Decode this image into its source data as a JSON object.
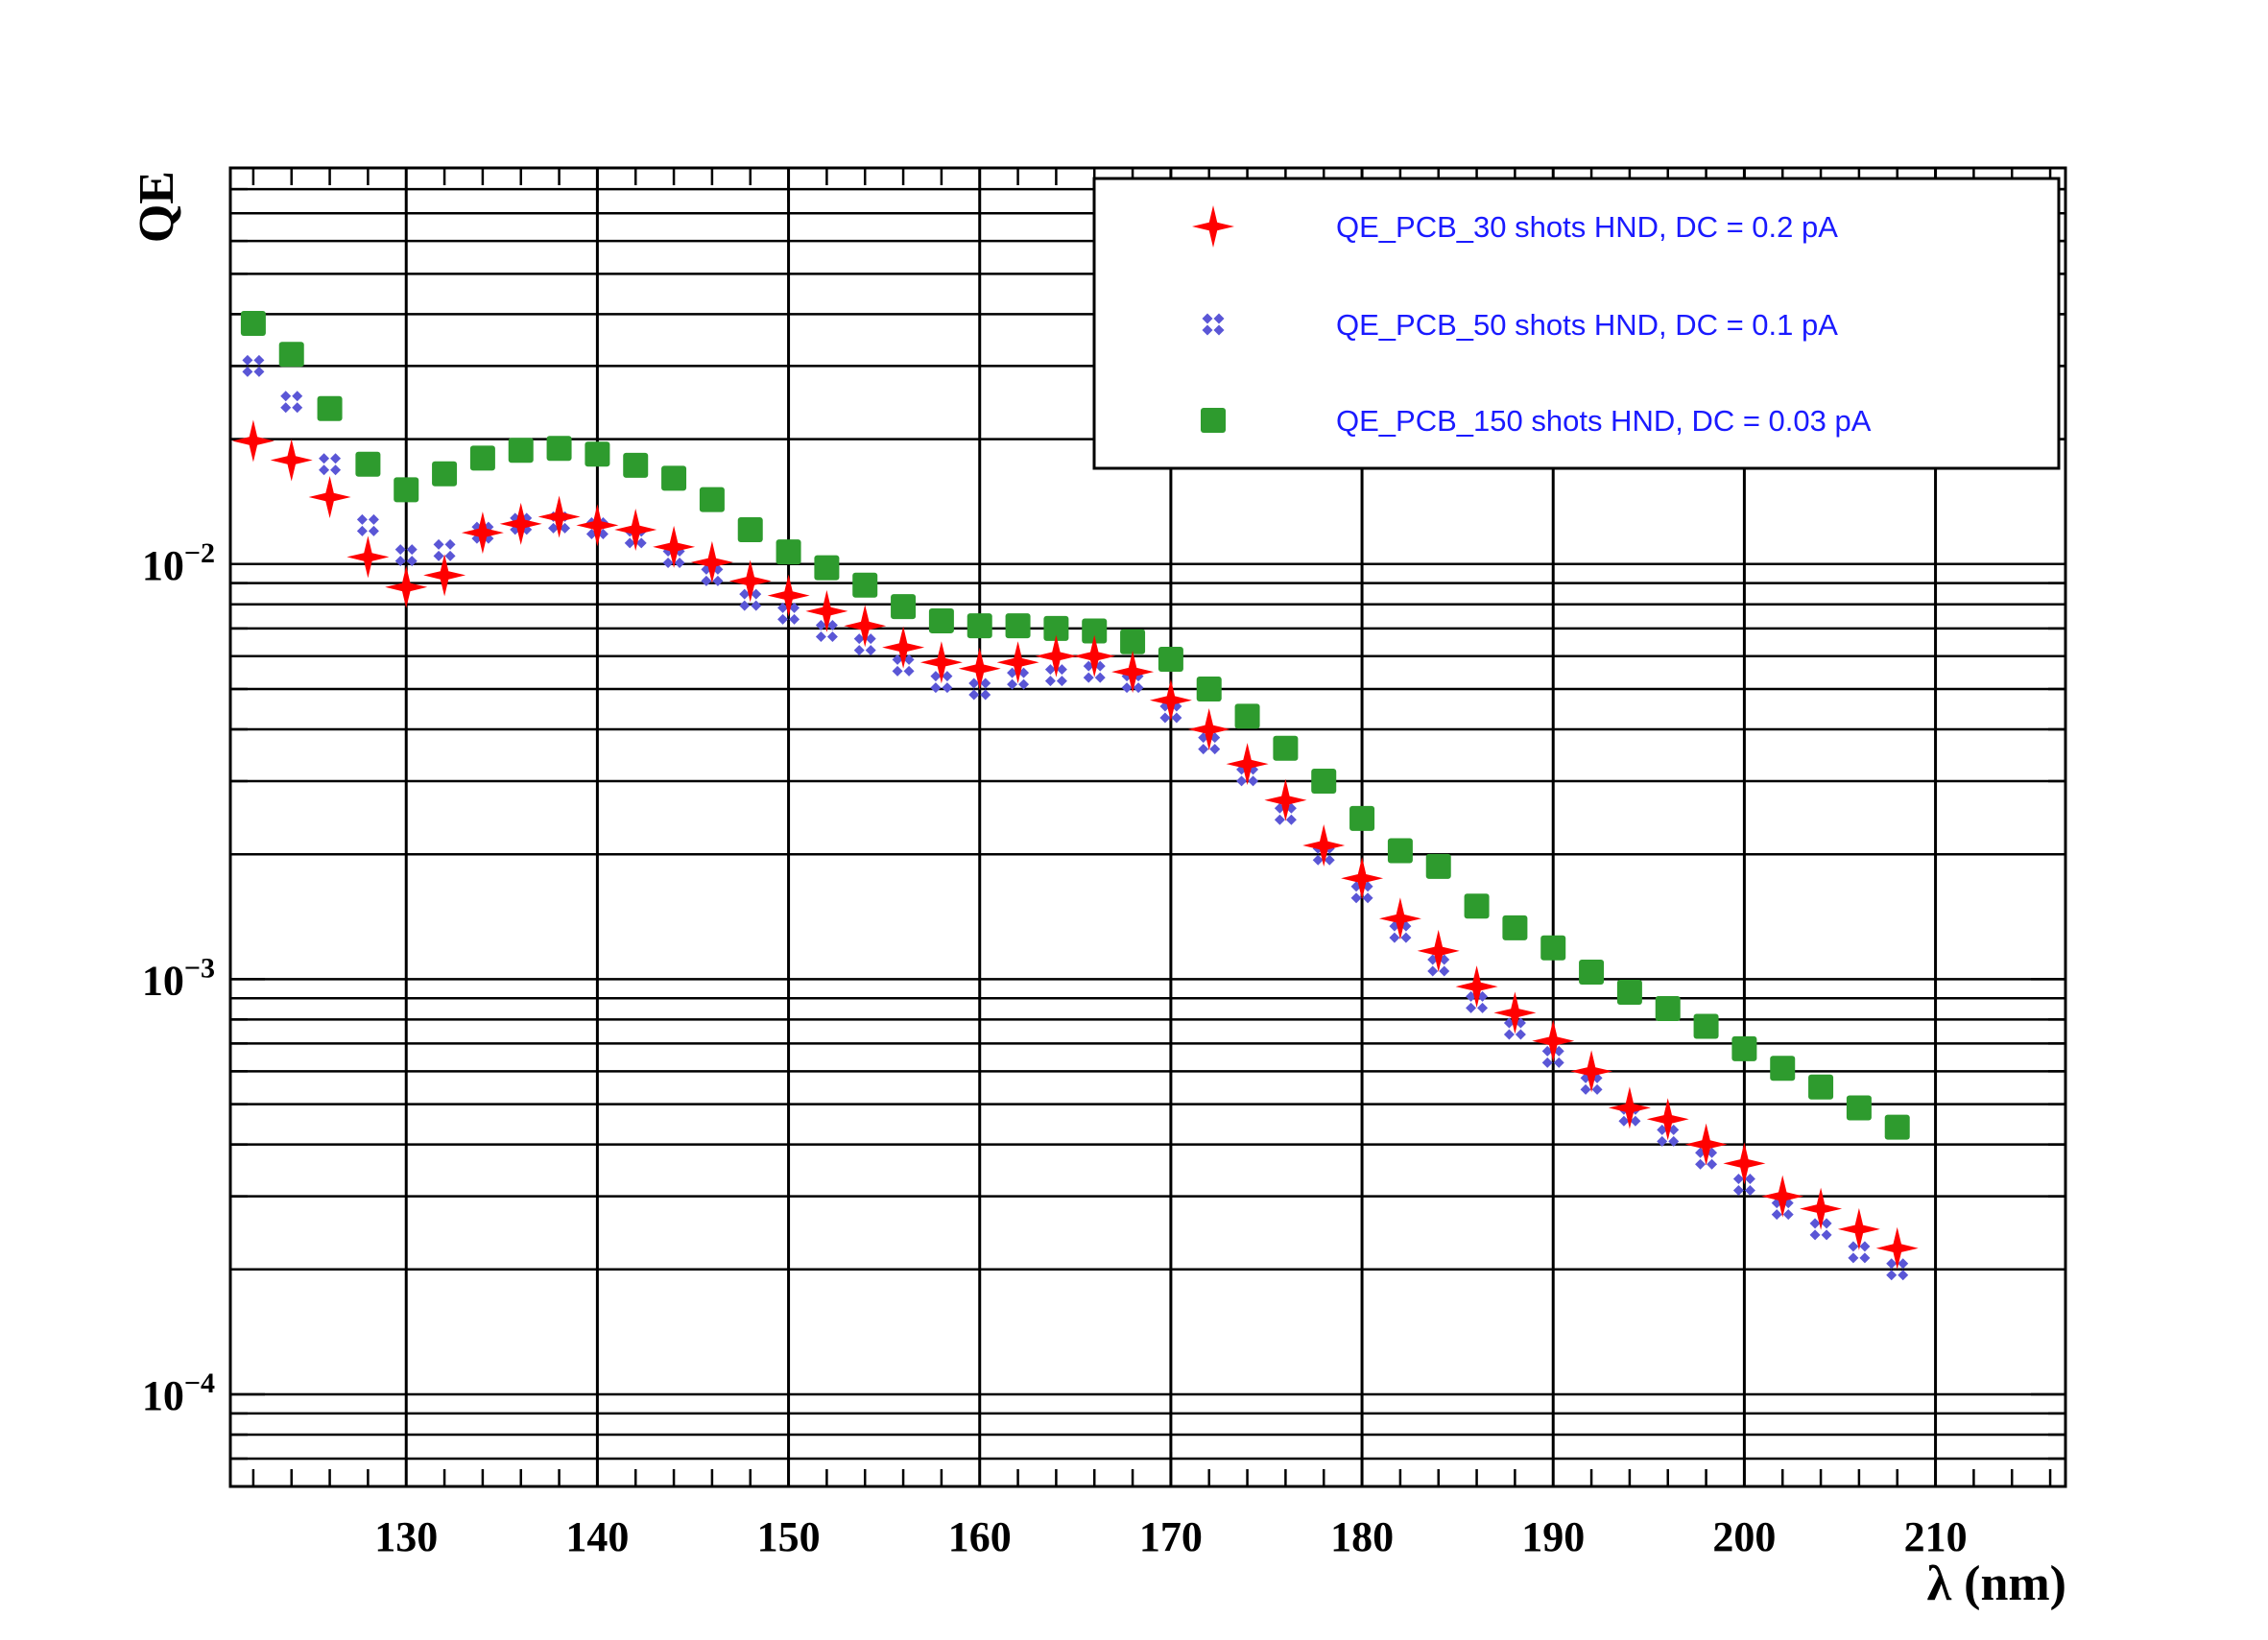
{
  "chart_data": {
    "type": "scatter",
    "title": "",
    "xlabel": "λ (nm)",
    "ylabel": "QE",
    "xlim": [
      120.8,
      216.8
    ],
    "ylim": [
      6e-05,
      0.09
    ],
    "yscale": "log",
    "grid": true,
    "legend_position": "top-right",
    "x_ticks": [
      {
        "value": 130,
        "label": "130"
      },
      {
        "value": 140,
        "label": "140"
      },
      {
        "value": 150,
        "label": "150"
      },
      {
        "value": 160,
        "label": "160"
      },
      {
        "value": 170,
        "label": "170"
      },
      {
        "value": 180,
        "label": "180"
      },
      {
        "value": 190,
        "label": "190"
      },
      {
        "value": 200,
        "label": "200"
      },
      {
        "value": 210,
        "label": "210"
      }
    ],
    "y_ticks": [
      {
        "value": 0.0001,
        "base": "10",
        "exp": "−4"
      },
      {
        "value": 0.001,
        "base": "10",
        "exp": "−3"
      },
      {
        "value": 0.01,
        "base": "10",
        "exp": "−2"
      }
    ],
    "x": [
      122,
      124,
      126,
      128,
      130,
      132,
      134,
      136,
      138,
      140,
      142,
      144,
      146,
      148,
      150,
      152,
      154,
      156,
      158,
      160,
      162,
      164,
      166,
      168,
      170,
      172,
      174,
      176,
      178,
      180,
      182,
      184,
      186,
      188,
      190,
      192,
      194,
      196,
      198,
      200,
      202,
      204,
      206,
      208
    ],
    "series": [
      {
        "name": "QE_PCB_30 shots HND, DC = 0.2 pA",
        "color": "#ff0000",
        "marker": "star",
        "values": [
          0.0198,
          0.0178,
          0.0145,
          0.0104,
          0.0088,
          0.0094,
          0.0119,
          0.0125,
          0.013,
          0.0124,
          0.0121,
          0.011,
          0.0101,
          0.0091,
          0.0084,
          0.0077,
          0.0071,
          0.0063,
          0.0058,
          0.0056,
          0.0058,
          0.006,
          0.006,
          0.0055,
          0.0047,
          0.004,
          0.0033,
          0.0027,
          0.0021,
          0.00175,
          0.0014,
          0.00117,
          0.00096,
          0.00083,
          0.00071,
          0.0006,
          0.00049,
          0.00046,
          0.0004,
          0.00036,
          0.0003,
          0.00028,
          0.00025,
          0.000225
        ]
      },
      {
        "name": "QE_PCB_50 shots HND, DC = 0.1 pA",
        "color": "#5a56d6",
        "marker": "cross",
        "values": [
          0.03,
          0.0246,
          0.0174,
          0.0124,
          0.0105,
          0.0108,
          0.0119,
          0.0125,
          0.0126,
          0.0122,
          0.0116,
          0.0104,
          0.0094,
          0.0082,
          0.0076,
          0.0069,
          0.0064,
          0.0057,
          0.0052,
          0.005,
          0.0053,
          0.0054,
          0.0055,
          0.0052,
          0.0044,
          0.0037,
          0.0031,
          0.0025,
          0.002,
          0.00162,
          0.0013,
          0.00108,
          0.00088,
          0.00076,
          0.00065,
          0.00056,
          0.00047,
          0.00042,
          0.00037,
          0.00032,
          0.00028,
          0.00025,
          0.00022,
          0.0002
        ]
      },
      {
        "name": "QE_PCB_150 shots HND, DC = 0.03 pA",
        "color": "#2e9b2e",
        "marker": "square",
        "values": [
          0.038,
          0.032,
          0.0237,
          0.0174,
          0.0151,
          0.0165,
          0.018,
          0.0188,
          0.019,
          0.0184,
          0.0173,
          0.0161,
          0.0143,
          0.0121,
          0.0107,
          0.0098,
          0.0089,
          0.0079,
          0.0073,
          0.0071,
          0.0071,
          0.007,
          0.0069,
          0.0065,
          0.0059,
          0.005,
          0.0043,
          0.0036,
          0.003,
          0.00244,
          0.00204,
          0.00187,
          0.0015,
          0.00133,
          0.00119,
          0.00104,
          0.00093,
          0.00085,
          0.00077,
          0.00068,
          0.00061,
          0.00055,
          0.00049,
          0.00044
        ]
      }
    ]
  }
}
